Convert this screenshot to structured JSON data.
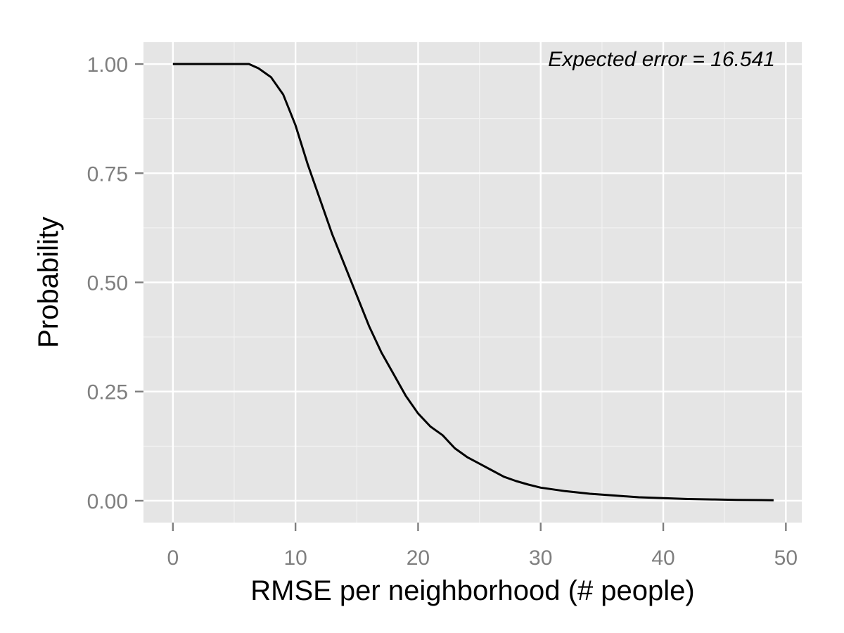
{
  "chart_data": {
    "type": "line",
    "title": "",
    "xlabel": "RMSE per neighborhood (# people)",
    "ylabel": "Probability",
    "xlim": [
      -2.4,
      51.3
    ],
    "ylim": [
      -0.05,
      1.05
    ],
    "x_ticks": [
      0,
      10,
      20,
      30,
      40,
      50
    ],
    "x_tick_labels": [
      "0",
      "10",
      "20",
      "30",
      "40",
      "50"
    ],
    "y_ticks": [
      0,
      0.25,
      0.5,
      0.75,
      1
    ],
    "y_tick_labels": [
      "0.00",
      "0.25",
      "0.50",
      "0.75",
      "1.00"
    ],
    "grid": true,
    "annotation": "Expected error = 16.541",
    "series": [
      {
        "line_color": "#000000",
        "x": [
          0,
          6.2,
          7,
          8,
          9,
          10,
          11,
          12,
          13,
          14,
          15,
          16,
          17,
          18,
          19,
          20,
          21,
          22,
          23,
          24,
          25,
          26,
          27,
          28,
          29,
          30,
          32,
          34,
          36,
          38,
          40,
          42,
          44,
          46,
          48,
          49
        ],
        "y": [
          1.0,
          1.0,
          0.99,
          0.97,
          0.93,
          0.86,
          0.77,
          0.69,
          0.61,
          0.54,
          0.47,
          0.4,
          0.34,
          0.29,
          0.24,
          0.2,
          0.17,
          0.15,
          0.12,
          0.1,
          0.085,
          0.07,
          0.055,
          0.045,
          0.037,
          0.03,
          0.022,
          0.016,
          0.012,
          0.008,
          0.006,
          0.004,
          0.003,
          0.002,
          0.0015,
          0.001
        ]
      }
    ]
  },
  "colors": {
    "panel_background": "#e5e5e5",
    "major_grid": "#ffffff",
    "minor_grid": "#f2f2f2",
    "tick_text": "#7f7f7f",
    "tick_mark": "#7f7f7f"
  }
}
